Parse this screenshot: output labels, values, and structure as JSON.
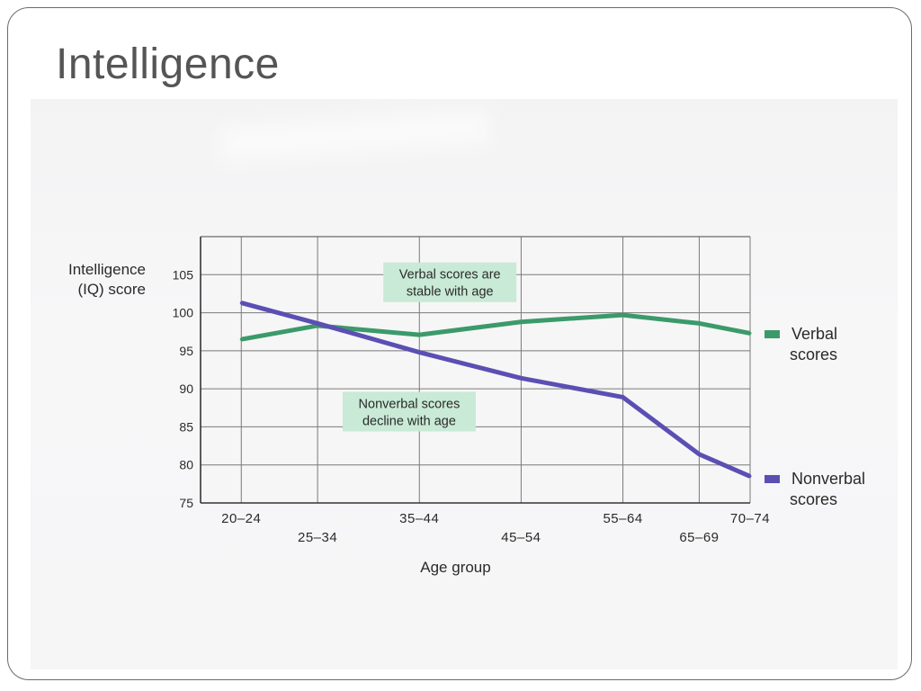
{
  "slide": {
    "title": "Intelligence"
  },
  "chart_data": {
    "type": "line",
    "ylabel_lines": [
      "Intelligence",
      "(IQ) score"
    ],
    "xlabel": "Age group",
    "categories": [
      "20–24",
      "25–34",
      "35–44",
      "45–54",
      "55–64",
      "65–69",
      "70–74"
    ],
    "x_positions": [
      22,
      29.5,
      39.5,
      49.5,
      59.5,
      67,
      72
    ],
    "x_range": [
      18,
      72
    ],
    "ylim": [
      75,
      110
    ],
    "yticks": [
      75,
      80,
      85,
      90,
      95,
      100,
      105
    ],
    "grid": true,
    "series": [
      {
        "name_lines": [
          "Verbal",
          "scores"
        ],
        "color": "#3c9a6a",
        "x": [
          22,
          29.5,
          39.5,
          49.5,
          59.5,
          67,
          72
        ],
        "values": [
          96.5,
          98.3,
          97.1,
          98.8,
          99.7,
          98.6,
          97.3
        ]
      },
      {
        "name_lines": [
          "Nonverbal",
          "scores"
        ],
        "color": "#5b4fb3",
        "x": [
          22,
          29.5,
          39.5,
          49.5,
          59.5,
          67,
          72
        ],
        "values": [
          101.3,
          98.6,
          94.8,
          91.4,
          88.9,
          81.4,
          78.5
        ]
      }
    ],
    "annotations": [
      {
        "name": "verbal-annotation",
        "lines": [
          "Verbal scores are",
          "stable with age"
        ],
        "at": [
          42.5,
          104.0
        ]
      },
      {
        "name": "nonverbal-annotation",
        "lines": [
          "Nonverbal scores",
          "decline with age"
        ],
        "at": [
          38.5,
          87.0
        ]
      }
    ],
    "legend_placement": "right"
  }
}
